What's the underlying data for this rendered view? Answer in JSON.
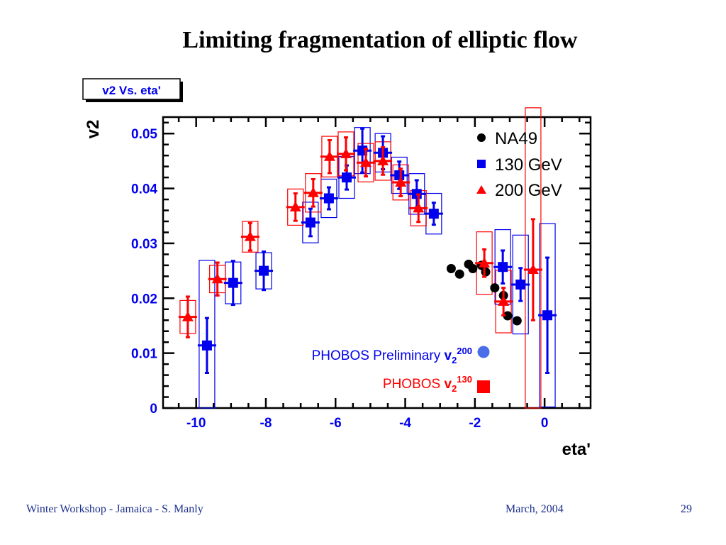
{
  "slide": {
    "title": "Limiting fragmentation of elliptic flow",
    "footer_left": "Winter Workshop - Jamaica - S. Manly",
    "footer_date": "March, 2004",
    "page_number": "29"
  },
  "colors": {
    "axis_text": "#0000ee",
    "na49": "#000000",
    "gev130": "#0000ee",
    "gev200": "#ff0000",
    "preliminary_dot": "#4a6ee8",
    "footer": "#1a2e8c"
  },
  "chart_data": {
    "type": "scatter",
    "title": "v2 Vs. eta'",
    "xlabel": "eta'",
    "ylabel": "v2",
    "xlim": [
      -10.95,
      1.32
    ],
    "ylim": [
      0,
      0.053
    ],
    "x_ticks": [
      -10,
      -8,
      -6,
      -4,
      -2,
      0
    ],
    "x_tick_labels": [
      "-10",
      "-8",
      "-6",
      "-4",
      "-2",
      "0"
    ],
    "y_ticks": [
      0,
      0.01,
      0.02,
      0.03,
      0.04,
      0.05
    ],
    "y_tick_labels": [
      "0",
      "0.01",
      "0.02",
      "0.03",
      "0.04",
      "0.05"
    ],
    "grid": false,
    "legend_position": "top-right",
    "legend": [
      {
        "label": "NA49",
        "marker": "circle"
      },
      {
        "label": "130 GeV",
        "marker": "square"
      },
      {
        "label": "200 GeV",
        "marker": "triangle"
      }
    ],
    "annotations": [
      {
        "text": "PHOBOS Preliminary ",
        "sym": "v",
        "sub": "2",
        "sup": "200",
        "marker": "circle",
        "color": "blue"
      },
      {
        "text": "PHOBOS ",
        "sym": "v",
        "sub": "2",
        "sup": "130",
        "marker": "square",
        "color": "red"
      }
    ],
    "series": [
      {
        "name": "NA49",
        "marker": "circle",
        "x": [
          -2.68,
          -2.44,
          -2.18,
          -2.06,
          -1.81,
          -1.69,
          -1.43,
          -1.18,
          -1.06,
          -0.79
        ],
        "y": [
          0.0254,
          0.0244,
          0.0262,
          0.0254,
          0.026,
          0.0248,
          0.0219,
          0.0205,
          0.0168,
          0.0159
        ]
      },
      {
        "name": "130 GeV",
        "marker": "square",
        "x": [
          -9.69,
          -8.94,
          -8.06,
          -6.72,
          -6.19,
          -5.68,
          -5.23,
          -4.64,
          -4.17,
          -3.67,
          -3.18,
          -1.2,
          -0.69,
          0.08
        ],
        "y": [
          0.0114,
          0.0228,
          0.025,
          0.0338,
          0.0382,
          0.042,
          0.0469,
          0.0465,
          0.0424,
          0.039,
          0.0354,
          0.0257,
          0.0225,
          0.0169
        ],
        "stat_err": [
          0.005,
          0.004,
          0.0035,
          0.0025,
          0.002,
          0.0022,
          0.004,
          0.003,
          0.0025,
          0.0025,
          0.002,
          0.003,
          0.003,
          0.0105
        ],
        "sys_err": [
          0.0155,
          0.0038,
          0.0033,
          0.0037,
          0.0035,
          0.0038,
          0.0042,
          0.0035,
          0.0033,
          0.0037,
          0.0037,
          0.0068,
          0.009,
          0.0167
        ]
      },
      {
        "name": "200 GeV",
        "marker": "triangle",
        "x": [
          -10.24,
          -9.39,
          -8.45,
          -7.15,
          -6.64,
          -6.17,
          -5.7,
          -5.13,
          -4.64,
          -4.13,
          -3.62,
          -1.73,
          -1.18,
          -0.33
        ],
        "y": [
          0.0166,
          0.0235,
          0.0312,
          0.0366,
          0.0392,
          0.0458,
          0.0463,
          0.0447,
          0.045,
          0.0411,
          0.0364,
          0.0264,
          0.0194,
          0.0252
        ],
        "stat_err": [
          0.0037,
          0.003,
          0.0025,
          0.0025,
          0.0025,
          0.003,
          0.003,
          0.0025,
          0.0025,
          0.0025,
          0.0025,
          0.0025,
          0.0025,
          0.0092
        ],
        "sys_err": [
          0.003,
          0.0025,
          0.0028,
          0.0033,
          0.0035,
          0.0037,
          0.004,
          0.0035,
          0.0035,
          0.0032,
          0.0032,
          0.0057,
          0.0057,
          0.0295
        ]
      }
    ]
  }
}
